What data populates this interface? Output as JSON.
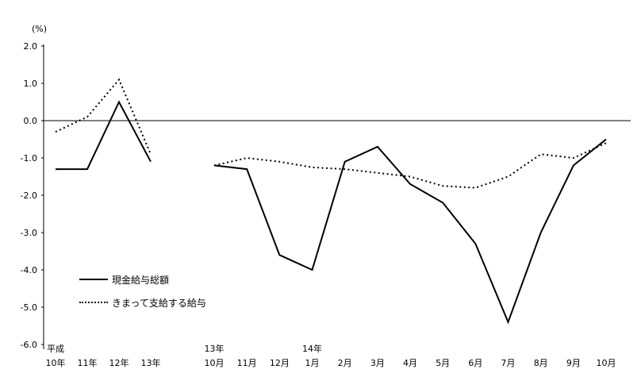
{
  "legend": {
    "items": [
      {
        "label": "現金給与総額",
        "style": "solid"
      },
      {
        "label": "きまって支給する給与",
        "style": "dotted"
      }
    ]
  },
  "chart_data": {
    "type": "line",
    "ylabel": "(%)",
    "ylim": [
      -6.0,
      2.0
    ],
    "grid": false,
    "legend_position": "inside-left",
    "y_ticks": [
      2.0,
      1.0,
      0.0,
      -1.0,
      -2.0,
      -3.0,
      -4.0,
      -5.0,
      -6.0
    ],
    "y_tick_labels": [
      "2.0",
      "1.0",
      "0.0",
      "-1.0",
      "-2.0",
      "-3.0",
      "-4.0",
      "-5.0",
      "-6.0"
    ],
    "groups": [
      {
        "name": "annual",
        "categories": [
          {
            "top": "平成",
            "label": "10年"
          },
          {
            "label": "11年"
          },
          {
            "label": "12年"
          },
          {
            "label": "13年"
          }
        ],
        "series": [
          {
            "name": "現金給与総額",
            "style": "solid",
            "values": [
              -1.3,
              -1.3,
              0.5,
              -1.1
            ]
          },
          {
            "name": "きまって支給する給与",
            "style": "dotted",
            "values": [
              -0.3,
              0.1,
              1.1,
              -0.9
            ]
          }
        ]
      },
      {
        "name": "monthly",
        "categories": [
          {
            "top": "13年",
            "label": "10月"
          },
          {
            "label": "11月"
          },
          {
            "label": "12月"
          },
          {
            "top": "14年",
            "label": "1月"
          },
          {
            "label": "2月"
          },
          {
            "label": "3月"
          },
          {
            "label": "4月"
          },
          {
            "label": "5月"
          },
          {
            "label": "6月"
          },
          {
            "label": "7月"
          },
          {
            "label": "8月"
          },
          {
            "label": "9月"
          },
          {
            "label": "10月"
          }
        ],
        "series": [
          {
            "name": "現金給与総額",
            "style": "solid",
            "values": [
              -1.2,
              -1.3,
              -3.6,
              -4.0,
              -1.1,
              -0.7,
              -1.7,
              -2.2,
              -3.3,
              -5.4,
              -3.0,
              -1.2,
              -0.5
            ]
          },
          {
            "name": "きまって支給する給与",
            "style": "dotted",
            "values": [
              -1.2,
              -1.0,
              -1.1,
              -1.25,
              -1.3,
              -1.4,
              -1.5,
              -1.75,
              -1.8,
              -1.5,
              -0.9,
              -1.0,
              -0.6
            ]
          }
        ]
      }
    ]
  }
}
